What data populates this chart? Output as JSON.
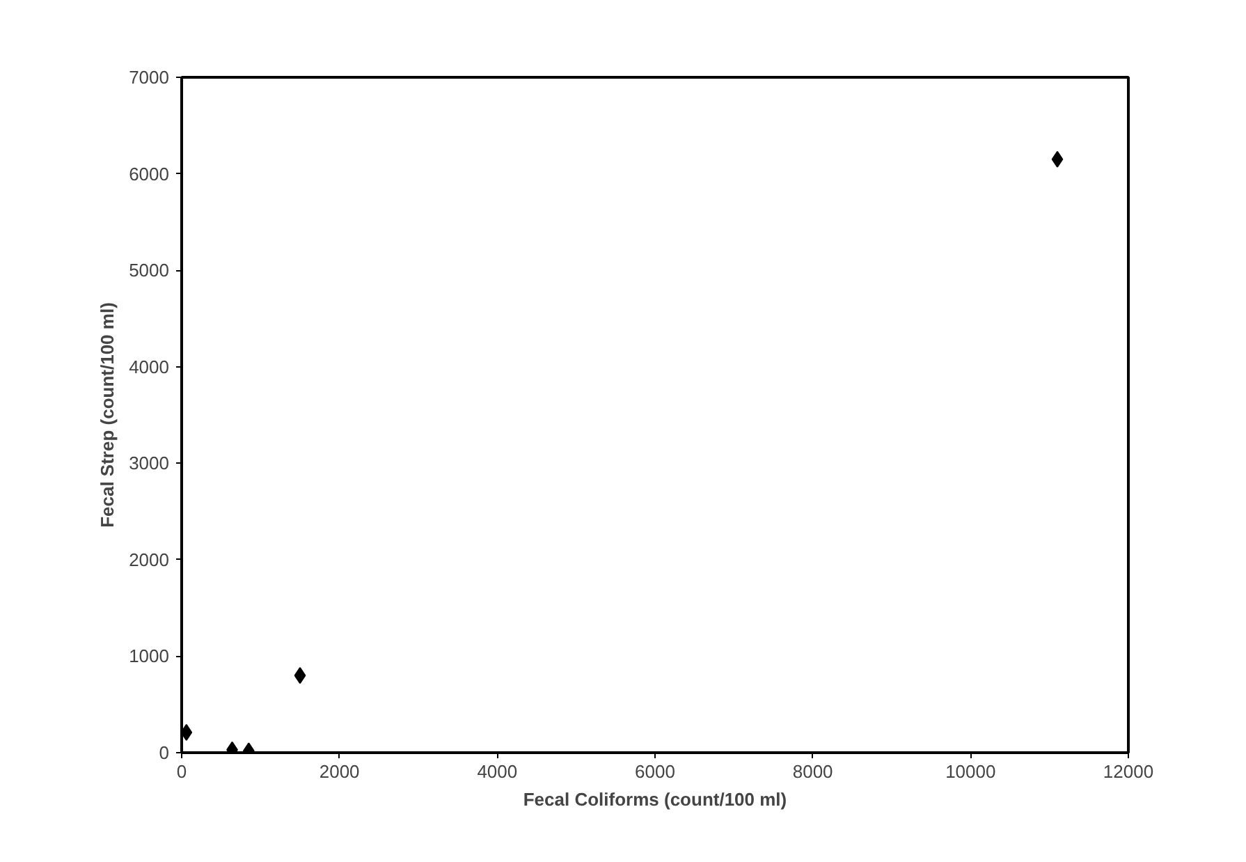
{
  "chart_data": {
    "type": "scatter",
    "xlabel": "Fecal Coliforms (count/100 ml)",
    "ylabel": "Fecal Strep (count/100 ml)",
    "x": [
      60,
      640,
      850,
      1500,
      11100
    ],
    "values": [
      210,
      30,
      20,
      800,
      6150
    ],
    "color": "#000000",
    "marker": "diamond",
    "grid": false,
    "xlim": [
      0,
      12000
    ],
    "xticks": [
      0,
      2000,
      4000,
      6000,
      8000,
      10000,
      12000
    ],
    "ylim": [
      0,
      7000
    ],
    "yticks": [
      0,
      1000,
      2000,
      3000,
      4000,
      5000,
      6000,
      7000
    ]
  }
}
